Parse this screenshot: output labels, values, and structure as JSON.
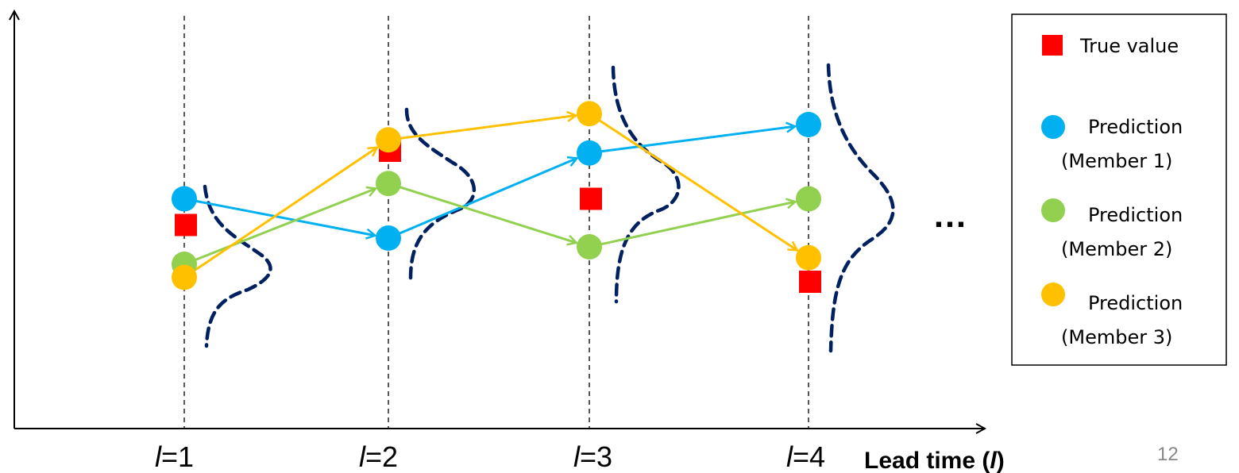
{
  "x_axis": {
    "title_italic": "l",
    "title_prefix": "Lead time (",
    "title_suffix": ")",
    "ticks": [
      {
        "var": "l",
        "rest": "=1"
      },
      {
        "var": "l",
        "rest": "=2"
      },
      {
        "var": "l",
        "rest": "=3"
      },
      {
        "var": "l",
        "rest": "=4"
      }
    ]
  },
  "continuation": "…",
  "page_number": "12",
  "legend": {
    "items": [
      {
        "marker": "square",
        "color": "#ff0000",
        "lines": [
          "True value"
        ]
      },
      {
        "marker": "circle",
        "color": "#00b0f0",
        "lines": [
          "Prediction",
          "(Member 1)"
        ]
      },
      {
        "marker": "circle",
        "color": "#92d050",
        "lines": [
          "Prediction",
          "(Member 2)"
        ]
      },
      {
        "marker": "circle",
        "color": "#ffc000",
        "lines": [
          "Prediction",
          "(Member 3)"
        ]
      }
    ]
  },
  "colors": {
    "member1": "#00b0f0",
    "member2": "#92d050",
    "member3": "#ffc000",
    "true_value": "#ff0000",
    "distribution": "#002060"
  },
  "data": {
    "lead_times": [
      1,
      2,
      3,
      4
    ],
    "true_value": [
      0.54,
      0.88,
      0.66,
      0.28
    ],
    "member1": [
      0.66,
      0.48,
      0.87,
      1.0
    ],
    "member2": [
      0.36,
      0.73,
      0.44,
      0.66
    ],
    "member3": [
      0.3,
      0.93,
      1.05,
      0.39
    ]
  }
}
